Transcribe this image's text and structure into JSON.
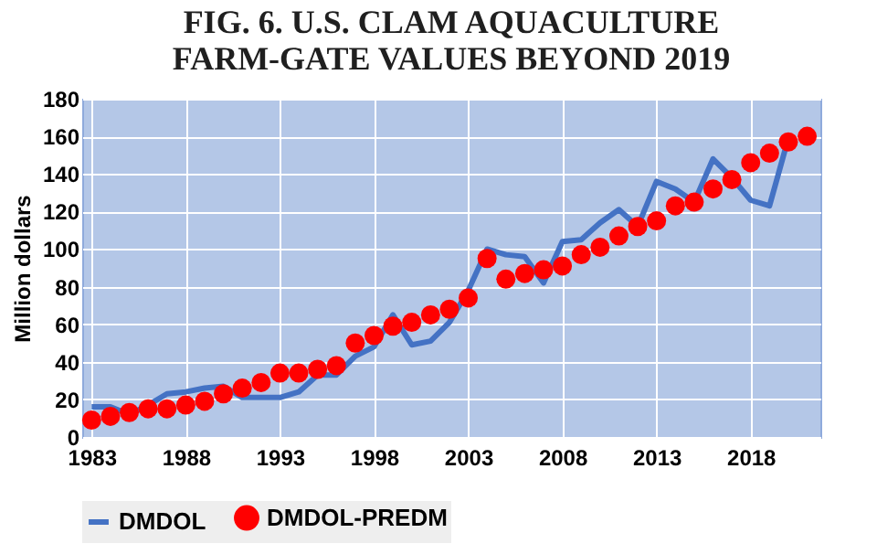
{
  "chart_data": {
    "type": "line",
    "title": "FIG. 6. U.S. CLAM AQUACULTURE\nFARM-GATE VALUES BEYOND 2019",
    "ylabel": "Million dollars",
    "series": [
      {
        "name": "DMDOL",
        "color": "#4472c4",
        "x": [
          1983,
          1984,
          1985,
          1986,
          1987,
          1988,
          1989,
          1990,
          1991,
          1992,
          1993,
          1994,
          1995,
          1996,
          1997,
          1998,
          1999,
          2000,
          2001,
          2002,
          2003,
          2004,
          2005,
          2006,
          2007,
          2008,
          2009,
          2010,
          2011,
          2012,
          2013,
          2014,
          2015,
          2016,
          2017,
          2018,
          2019,
          2020
        ],
        "values": [
          16,
          16,
          12,
          17,
          23,
          24,
          26,
          27,
          21,
          21,
          21,
          24,
          33,
          33,
          43,
          48,
          65,
          49,
          51,
          61,
          78,
          100,
          97,
          96,
          82,
          104,
          105,
          114,
          121,
          112,
          136,
          132,
          125,
          148,
          138,
          126,
          123,
          159
        ]
      },
      {
        "name": "DMDOL-PREDM",
        "type": "scatter",
        "marker": "circle",
        "color": "#ff0000",
        "x": [
          1983,
          1984,
          1985,
          1986,
          1987,
          1988,
          1989,
          1990,
          1991,
          1992,
          1993,
          1994,
          1995,
          1996,
          1997,
          1998,
          1999,
          2000,
          2001,
          2002,
          2003,
          2004,
          2005,
          2006,
          2007,
          2008,
          2009,
          2010,
          2011,
          2012,
          2013,
          2014,
          2015,
          2016,
          2017,
          2018,
          2019,
          2020,
          2021
        ],
        "values": [
          9,
          11,
          13,
          15,
          15,
          17,
          19,
          23,
          26,
          29,
          34,
          34,
          36,
          38,
          50,
          54,
          59,
          61,
          65,
          68,
          74,
          95,
          84,
          87,
          89,
          91,
          97,
          101,
          107,
          112,
          115,
          123,
          125,
          132,
          137,
          146,
          151,
          157,
          160
        ]
      }
    ],
    "xlim": [
      1982.5,
      2021.7
    ],
    "xticks": [
      1983,
      1988,
      1993,
      1998,
      2003,
      2008,
      2013,
      2018
    ],
    "ylim": [
      0,
      180
    ],
    "yticks": [
      0,
      20,
      40,
      60,
      80,
      100,
      120,
      140,
      160,
      180
    ],
    "grid": true,
    "legend": "bottom"
  }
}
